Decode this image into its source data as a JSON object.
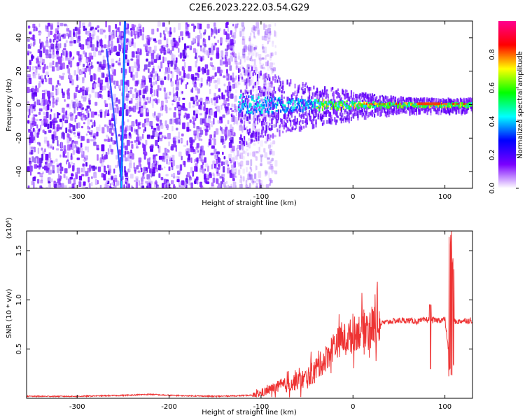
{
  "figure": {
    "title": "C2E6.2023.222.03.54.G29"
  },
  "chart_data": [
    {
      "type": "heatmap",
      "xlabel": "Height of straight line (km)",
      "ylabel": "Frequency (Hz)",
      "xlim": [
        -355,
        130
      ],
      "ylim": [
        -50,
        50
      ],
      "x_ticks": [
        -300,
        -200,
        -100,
        0,
        100
      ],
      "y_ticks": [
        -40,
        -20,
        0,
        20,
        40
      ],
      "colorbar": {
        "label": "Normalized spectral amplitude",
        "range": [
          0,
          1
        ],
        "ticks": [
          "0.0",
          "0.2",
          "0.4",
          "0.6",
          "0.8"
        ],
        "colormap": [
          "#ffffff",
          "#7a00ff",
          "#0000ff",
          "#00ffff",
          "#00ff00",
          "#ffff00",
          "#ff0000",
          "#ff0090"
        ]
      },
      "features": {
        "noise_region_x": [
          -355,
          -100
        ],
        "diagonal_line": {
          "x_at_top": -248,
          "x_at_bottom": -252,
          "secondary_x_at_top": -268,
          "secondary_x_at_bottom": -252
        },
        "signal_band": {
          "x_start": -125,
          "x_end": 130,
          "center_freq": 0.5
        }
      }
    },
    {
      "type": "line",
      "xlabel": "Height of straight line (km)",
      "ylabel": "SNR (10 * v/v)",
      "y_multiplier": "(x10⁴)",
      "xlim": [
        -355,
        130
      ],
      "ylim": [
        0,
        1.7
      ],
      "x_ticks": [
        -300,
        -200,
        -100,
        0,
        100
      ],
      "y_ticks": [
        "0.5",
        "1.0",
        "1.5"
      ],
      "series": [
        {
          "color": "#ee3333",
          "x": [
            -355,
            -300,
            -250,
            -220,
            -200,
            -150,
            -110,
            -100,
            -90,
            -80,
            -70,
            -60,
            -50,
            -40,
            -30,
            -20,
            -10,
            0,
            10,
            20,
            30,
            40,
            50,
            60,
            70,
            80,
            85,
            90,
            100,
            105,
            110,
            115,
            120,
            130
          ],
          "values": [
            0.02,
            0.02,
            0.03,
            0.04,
            0.03,
            0.02,
            0.03,
            0.05,
            0.09,
            0.12,
            0.14,
            0.18,
            0.2,
            0.3,
            0.4,
            0.55,
            0.6,
            0.65,
            0.7,
            0.74,
            0.76,
            0.78,
            0.79,
            0.79,
            0.78,
            0.8,
            0.8,
            0.79,
            0.8,
            0.4,
            0.78,
            0.78,
            0.79,
            0.79
          ]
        }
      ]
    }
  ]
}
